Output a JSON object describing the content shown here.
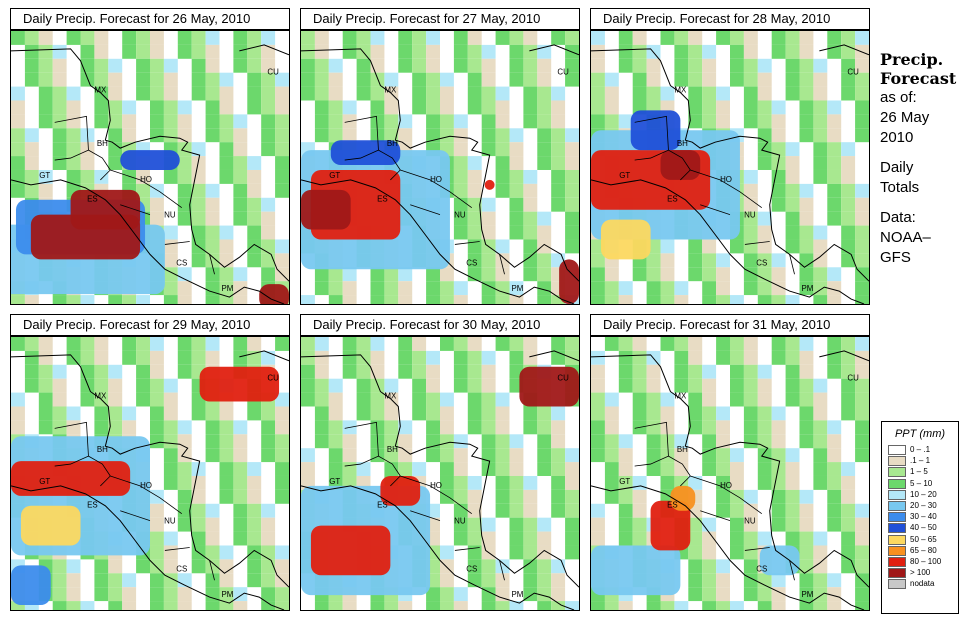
{
  "panels": [
    {
      "title": "Daily Precip. Forecast for  26 May, 2010"
    },
    {
      "title": "Daily Precip. Forecast for  27 May, 2010"
    },
    {
      "title": "Daily Precip. Forecast for  28 May, 2010"
    },
    {
      "title": "Daily Precip. Forecast for  29 May, 2010"
    },
    {
      "title": "Daily Precip. Forecast for  30 May, 2010"
    },
    {
      "title": "Daily Precip. Forecast for  31 May, 2010"
    }
  ],
  "map_labels": [
    "MX",
    "BH",
    "GT",
    "HO",
    "ES",
    "NU",
    "CS",
    "PM",
    "CU"
  ],
  "sidebar": {
    "heading": [
      "Precip.",
      "Forecast"
    ],
    "lines": [
      "as of:",
      "26 May",
      "2010",
      "",
      "Daily",
      "Totals",
      "",
      "Data:",
      "NOAA–",
      "GFS"
    ]
  },
  "legend": {
    "title": "PPT (mm)",
    "items": [
      {
        "label": "0 – .1",
        "color": "#ffffff"
      },
      {
        "label": ".1 – 1",
        "color": "#e8dcc4"
      },
      {
        "label": "1 – 5",
        "color": "#a8e890"
      },
      {
        "label": "5 – 10",
        "color": "#6cd86c"
      },
      {
        "label": "10 – 20",
        "color": "#b4e8f8"
      },
      {
        "label": "20 – 30",
        "color": "#78c8f0"
      },
      {
        "label": "30 – 40",
        "color": "#3c8cec"
      },
      {
        "label": "40 – 50",
        "color": "#2050d8"
      },
      {
        "label": "50 – 65",
        "color": "#fcd860"
      },
      {
        "label": "65 – 80",
        "color": "#f89020"
      },
      {
        "label": "80 – 100",
        "color": "#e02010"
      },
      {
        "label": "> 100",
        "color": "#a01818"
      },
      {
        "label": "nodata",
        "color": "#c8c8c8"
      }
    ]
  }
}
